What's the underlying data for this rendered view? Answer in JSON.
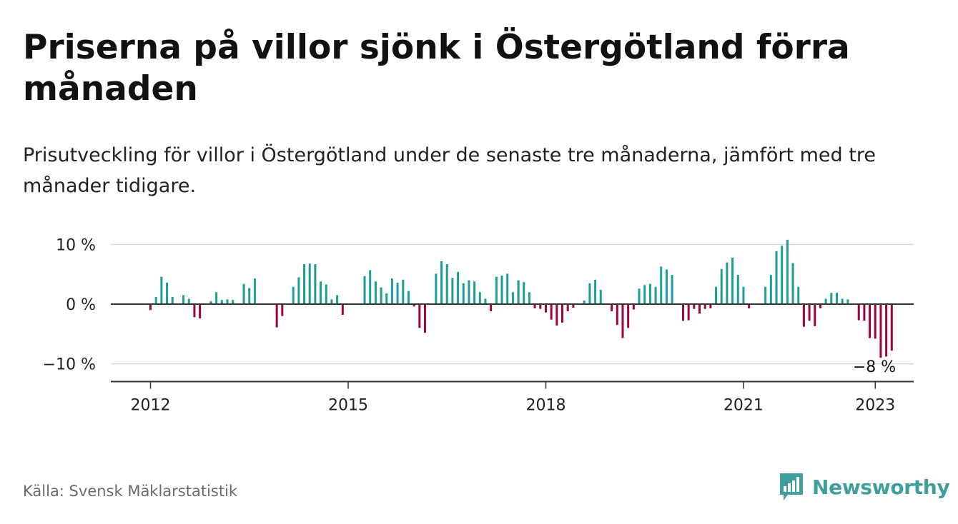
{
  "header": {
    "title": "Priserna på villor sjönk i Östergötland förra månaden",
    "subtitle": "Prisutveckling för villor i Östergötland under de senaste tre månaderna, jämfört med tre månader tidigare."
  },
  "footer": {
    "source": "Källa: Svensk Mäklarstatistik",
    "logo_text": "Newsworthy"
  },
  "colors": {
    "positive": "#1a9e96",
    "negative": "#a3003f",
    "brand": "#3e9f9c"
  },
  "chart_data": {
    "type": "bar",
    "title": "Priserna på villor sjönk i Östergötland förra månaden",
    "subtitle": "Prisutveckling för villor i Östergötland under de senaste tre månaderna, jämfört med tre månader tidigare.",
    "xlabel": "",
    "ylabel": "",
    "unit": "%",
    "x_start": "2011-10",
    "x_end": "2023-01",
    "ylim": [
      -13,
      10.5
    ],
    "y_ticks": [
      {
        "value": 10,
        "label": "10 %"
      },
      {
        "value": 0,
        "label": "0 %"
      },
      {
        "value": -10,
        "label": "−10 %"
      }
    ],
    "x_ticks": [
      {
        "date": "2012-01",
        "label": "2012"
      },
      {
        "date": "2015-01",
        "label": "2015"
      },
      {
        "date": "2018-01",
        "label": "2018"
      },
      {
        "date": "2021-01",
        "label": "2021"
      },
      {
        "date": "2023-01",
        "label": "2023"
      }
    ],
    "grid": true,
    "last_label": "−8 %",
    "series": [
      {
        "values": [
          0.0,
          0.0,
          0.0,
          -1.0,
          1.2,
          4.6,
          3.6,
          1.2,
          0.0,
          1.5,
          0.9,
          -2.2,
          -2.4,
          0.0,
          0.5,
          2.0,
          0.7,
          0.8,
          0.7,
          0.0,
          3.4,
          2.7,
          4.3,
          0.0,
          0.0,
          0.0,
          -3.9,
          -2.0,
          0.0,
          2.9,
          4.5,
          6.7,
          6.8,
          6.7,
          3.8,
          3.3,
          0.8,
          1.5,
          -1.8,
          0.0,
          0.0,
          0.0,
          4.7,
          5.7,
          3.8,
          2.8,
          1.8,
          4.3,
          3.6,
          4.1,
          2.2,
          -0.4,
          -4.0,
          -4.8,
          0.0,
          5.1,
          7.2,
          6.7,
          4.4,
          5.4,
          3.5,
          4.0,
          3.8,
          2.0,
          0.9,
          -1.2,
          4.6,
          4.8,
          5.1,
          2.0,
          4.0,
          3.7,
          2.0,
          -0.7,
          -0.8,
          -1.4,
          -2.6,
          -3.6,
          -3.1,
          -1.2,
          -0.6,
          0.0,
          0.6,
          3.5,
          4.1,
          2.4,
          0.0,
          -1.2,
          -3.5,
          -5.7,
          -4.0,
          -0.9,
          2.6,
          3.2,
          3.4,
          2.9,
          6.3,
          5.8,
          4.9,
          0.0,
          -2.8,
          -2.7,
          -0.8,
          -1.6,
          -0.8,
          -0.7,
          2.9,
          5.9,
          7.0,
          7.8,
          4.9,
          2.9,
          -0.7,
          0.0,
          0.0,
          2.9,
          4.9,
          8.9,
          9.8,
          10.8,
          6.9,
          2.9,
          -3.8,
          -2.8,
          -3.7,
          -0.7,
          0.9,
          1.9,
          1.9,
          0.9,
          0.8,
          0.0,
          -2.7,
          -2.8,
          -5.7,
          -5.8,
          -9.0,
          -8.8,
          -7.8
        ]
      }
    ]
  }
}
